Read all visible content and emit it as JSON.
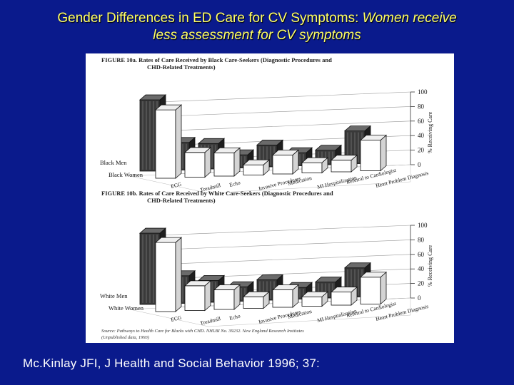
{
  "slide": {
    "title_line1_plain": "Gender Differences in ED Care for CV Symptoms: ",
    "title_line1_italic": "Women receive",
    "title_line2_italic": "less assessment for CV symptoms",
    "citation": "Mc.Kinlay JFI, J Health and Social Behavior 1996; 37:"
  },
  "colors": {
    "background": "#0a1a8c",
    "title": "#ffff66",
    "citation": "#ffffff",
    "men_bars": "#3a3a3a",
    "women_bars": "#ffffff"
  },
  "chart_data": [
    {
      "type": "bar",
      "title_line1": "FIGURE 10a. Rates of Care Received by Black Care-Seekers (Diagnostic Procedures and",
      "title_line2": "CHD-Related Treatments)",
      "categories": [
        "ECG",
        "Treadmill",
        "Echo",
        "Invasive Procedures",
        "Medication",
        "MI Hospitalization",
        "Referral to Cardiologist",
        "Heart Problem Diagnosis"
      ],
      "series": [
        {
          "name": "Black Men",
          "values": [
            98,
            38,
            35,
            18,
            30,
            18,
            20,
            45
          ]
        },
        {
          "name": "Black Women",
          "values": [
            94,
            34,
            32,
            14,
            26,
            14,
            16,
            42
          ]
        }
      ],
      "ylabel": "% Receiving Care",
      "yticks": [
        0,
        20,
        40,
        60,
        80,
        100
      ],
      "ylim": [
        0,
        100
      ],
      "grid": true
    },
    {
      "type": "bar",
      "title_line1": "FIGURE 10b. Rates of Care Received by White Care-Seekers (Diagnostic Procedures and",
      "title_line2": "CHD-Related Treatments)",
      "categories": [
        "ECG",
        "Treadmill",
        "Echo",
        "Invasive Procedures",
        "Medication",
        "MI Hospitalization",
        "Referral to Cardiologist",
        "Heart Problem Diagnosis"
      ],
      "series": [
        {
          "name": "White Men",
          "values": [
            98,
            38,
            30,
            20,
            28,
            16,
            22,
            40
          ]
        },
        {
          "name": "White Women",
          "values": [
            95,
            34,
            27,
            16,
            24,
            13,
            18,
            37
          ]
        }
      ],
      "ylabel": "% Receiving Care",
      "yticks": [
        0,
        20,
        40,
        60,
        80,
        100
      ],
      "ylim": [
        0,
        100
      ],
      "grid": true
    }
  ],
  "source_note_line1": "Source:  Pathways to Health Care for Blacks with CHD.  NHLBI No. 39232.  New England Research Institutes",
  "source_note_line2": "(Unpublished data, 1993)"
}
